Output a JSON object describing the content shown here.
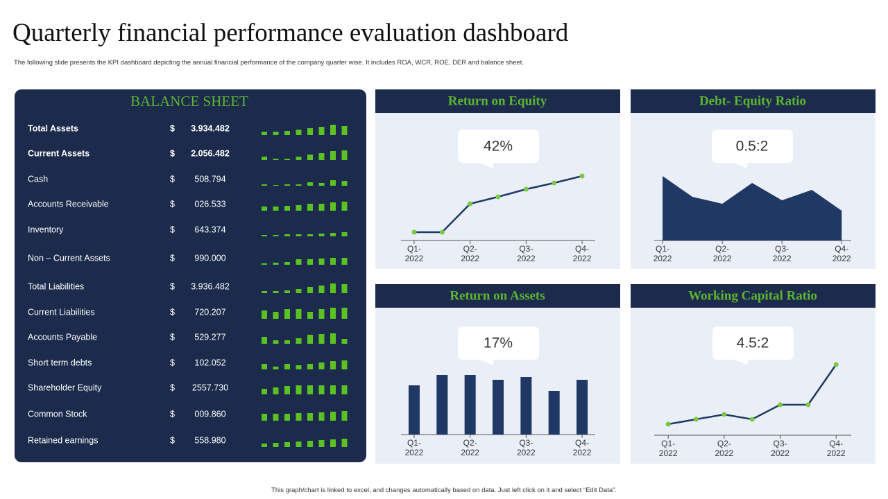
{
  "title": "Quarterly financial performance evaluation dashboard",
  "subtitle": "The following slide presents the KPI  dashboard depicting the annual  financial performance of the company quarter wise. It includes ROA,  WCR,  ROE,  DER  and balance sheet.",
  "footer": "This graph/chart is linked to excel, and changes automatically based on data. Just left click on it and select “Edit Data”.",
  "balance_sheet": {
    "title": "BALANCE SHEET",
    "rows": [
      {
        "label": "Total Assets",
        "currency": "$",
        "value": "3.934.482",
        "bars": [
          5,
          5,
          6,
          8,
          10,
          12,
          15,
          13
        ]
      },
      {
        "label": "Current Assets",
        "currency": "$",
        "value": "2.056.482",
        "bars": [
          5,
          2,
          2,
          5,
          8,
          10,
          13,
          14
        ]
      },
      {
        "label": "Cash",
        "currency": "$",
        "value": "508.794",
        "bars": [
          2,
          1,
          2,
          2,
          5,
          4,
          8,
          7
        ]
      },
      {
        "label": "Accounts  Receivable",
        "currency": "$",
        "value": "026.533",
        "bars": [
          6,
          6,
          7,
          8,
          10,
          10,
          12,
          13
        ]
      },
      {
        "label": "Inventory",
        "currency": "$",
        "value": "643.374",
        "bars": [
          2,
          2,
          3,
          3,
          3,
          4,
          5,
          6
        ]
      },
      {
        "label": "Non – Current Assets",
        "currency": "$",
        "value": "990.000",
        "bars": [
          2,
          3,
          4,
          8,
          8,
          9,
          10,
          10
        ]
      },
      {
        "label": "Total Liabilities",
        "currency": "$",
        "value": "3.936.482",
        "bars": [
          3,
          3,
          4,
          6,
          9,
          11,
          14,
          13
        ]
      },
      {
        "label": "Current Liabilities",
        "currency": "$",
        "value": "720.207",
        "bars": [
          12,
          10,
          14,
          14,
          10,
          14,
          16,
          16
        ]
      },
      {
        "label": "Accounts Payable",
        "currency": "$",
        "value": "529.277",
        "bars": [
          10,
          5,
          5,
          8,
          13,
          14,
          15,
          7
        ]
      },
      {
        "label": "Short term debts",
        "currency": "$",
        "value": "102.052",
        "bars": [
          8,
          4,
          8,
          6,
          8,
          10,
          12,
          13
        ]
      },
      {
        "label": "Shareholder Equity",
        "currency": "$",
        "value": "2557.730",
        "bars": [
          8,
          10,
          12,
          13,
          13,
          13,
          13,
          13
        ]
      },
      {
        "label": "Common Stock",
        "currency": "$",
        "value": "009.860",
        "bars": [
          10,
          10,
          10,
          11,
          11,
          12,
          13,
          14
        ]
      },
      {
        "label": "Retained earnings",
        "currency": "$",
        "value": "558.980",
        "bars": [
          5,
          6,
          7,
          8,
          9,
          10,
          11,
          12
        ]
      }
    ]
  },
  "chart_data": [
    {
      "type": "line",
      "title": "Return on Equity",
      "callout": "42%",
      "x": [
        1,
        1.5,
        2,
        2.5,
        3,
        3.5,
        4
      ],
      "values": [
        12,
        12,
        53,
        63,
        74,
        83,
        93
      ],
      "color": "#1f3864",
      "marker_color": "#7ac943",
      "xlim": [
        0.765,
        4.235
      ],
      "xticks": [
        {
          "value": 1,
          "label": "Q1-2022"
        },
        {
          "value": 2,
          "label": "Q2-2022"
        },
        {
          "value": 3,
          "label": "Q3-2022"
        },
        {
          "value": 4,
          "label": "Q4-2022"
        }
      ],
      "ylim": [
        0,
        100
      ]
    },
    {
      "type": "area",
      "title": "Debt- Equity Ratio",
      "callout": "0.5:2",
      "x": [
        1,
        1.5,
        2,
        2.5,
        3,
        3.5,
        4
      ],
      "values": [
        93,
        63,
        53,
        83,
        58,
        73,
        43
      ],
      "color": "#1f3864",
      "xlim": [
        0.86,
        4.16
      ],
      "xticks": [
        {
          "value": 1,
          "label": "Q1-2022"
        },
        {
          "value": 2,
          "label": "Q2-2022"
        },
        {
          "value": 3,
          "label": "Q3-2022"
        },
        {
          "value": 4,
          "label": "Q4-2022"
        }
      ],
      "ylim": [
        0,
        100
      ]
    },
    {
      "type": "bar",
      "title": "Return on Assets",
      "callout": "17%",
      "x": [
        1,
        1.5,
        2,
        2.5,
        3,
        3.5,
        4
      ],
      "values": [
        71,
        86,
        86,
        79,
        83,
        63,
        79
      ],
      "color": "#1f3864",
      "xlim": [
        0.765,
        4.235
      ],
      "xticks": [
        {
          "value": 1,
          "label": "Q1-2022"
        },
        {
          "value": 2,
          "label": "Q2-2022"
        },
        {
          "value": 3,
          "label": "Q3-2022"
        },
        {
          "value": 4,
          "label": "Q4-2022"
        }
      ],
      "ylim": [
        0,
        100
      ]
    },
    {
      "type": "line",
      "title": "Working Capital Ratio",
      "callout": "4.5:2",
      "x": [
        1,
        1.5,
        2,
        2.5,
        3,
        3.5,
        4
      ],
      "values": [
        16,
        23,
        30,
        23,
        44,
        44,
        102
      ],
      "color": "#1f3864",
      "marker_color": "#7ac943",
      "xlim": [
        0.75,
        4.27
      ],
      "xticks": [
        {
          "value": 1,
          "label": "Q1-2022"
        },
        {
          "value": 2,
          "label": "Q2-2022"
        },
        {
          "value": 3,
          "label": "Q3-2022"
        },
        {
          "value": 4,
          "label": "Q4-2022"
        }
      ],
      "ylim": [
        0,
        110
      ]
    }
  ]
}
